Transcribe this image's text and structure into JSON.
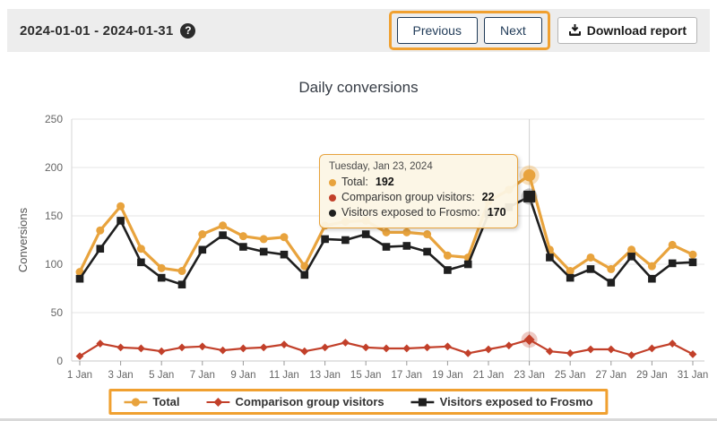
{
  "header": {
    "date_range": "2024-01-01 - 2024-01-31",
    "help_label": "?",
    "previous_label": "Previous",
    "next_label": "Next",
    "download_label": "Download report"
  },
  "colors": {
    "highlight_border": "#f0a030",
    "tooltip_border": "#e8a33d",
    "toolbar_bg": "#ededed",
    "nav_button": "#1f3a57"
  },
  "chart_data": {
    "type": "line",
    "title": "Daily conversions",
    "xlabel": "",
    "ylabel": "Conversions",
    "ylim": [
      0,
      250
    ],
    "yticks": [
      0,
      50,
      100,
      150,
      200,
      250
    ],
    "grid": "horizontal",
    "legend_position": "bottom",
    "x_days": [
      1,
      2,
      3,
      4,
      5,
      6,
      7,
      8,
      9,
      10,
      11,
      12,
      13,
      14,
      15,
      16,
      17,
      18,
      19,
      20,
      21,
      22,
      23,
      24,
      25,
      26,
      27,
      28,
      29,
      30,
      31
    ],
    "xtick_labels": [
      "1 Jan",
      "3 Jan",
      "5 Jan",
      "7 Jan",
      "9 Jan",
      "11 Jan",
      "13 Jan",
      "15 Jan",
      "17 Jan",
      "19 Jan",
      "21 Jan",
      "23 Jan",
      "25 Jan",
      "27 Jan",
      "29 Jan",
      "31 Jan"
    ],
    "highlight_day": 23,
    "series": [
      {
        "name": "Total",
        "marker": "circle",
        "color": "#e8a33d",
        "halo": "rgba(232,163,61,0.35)",
        "width": 3.2,
        "values": [
          92,
          135,
          160,
          116,
          96,
          93,
          131,
          140,
          129,
          126,
          128,
          98,
          140,
          144,
          145,
          133,
          133,
          131,
          109,
          107,
          165,
          177,
          192,
          115,
          93,
          107,
          95,
          115,
          98,
          120,
          110
        ]
      },
      {
        "name": "Comparison group visitors",
        "marker": "diamond",
        "color": "#c2402a",
        "halo": "rgba(194,64,42,0.28)",
        "width": 2.2,
        "values": [
          5,
          18,
          14,
          13,
          10,
          14,
          15,
          11,
          13,
          14,
          17,
          10,
          14,
          19,
          14,
          13,
          13,
          14,
          15,
          8,
          12,
          16,
          22,
          10,
          8,
          12,
          12,
          6,
          13,
          18,
          7
        ]
      },
      {
        "name": "Visitors exposed to Frosmo",
        "marker": "square",
        "color": "#1f1f1f",
        "halo": "rgba(110,110,110,0.40)",
        "width": 2.6,
        "values": [
          85,
          116,
          145,
          102,
          86,
          79,
          115,
          130,
          118,
          113,
          110,
          89,
          126,
          125,
          131,
          118,
          119,
          113,
          94,
          100,
          152,
          159,
          170,
          107,
          86,
          95,
          81,
          108,
          85,
          101,
          102
        ]
      }
    ]
  },
  "tooltip": {
    "title": "Tuesday, Jan 23, 2024",
    "rows": [
      {
        "label": "Total:",
        "value": "192"
      },
      {
        "label": "Comparison group visitors:",
        "value": "22"
      },
      {
        "label": "Visitors exposed to Frosmo:",
        "value": "170"
      }
    ]
  }
}
